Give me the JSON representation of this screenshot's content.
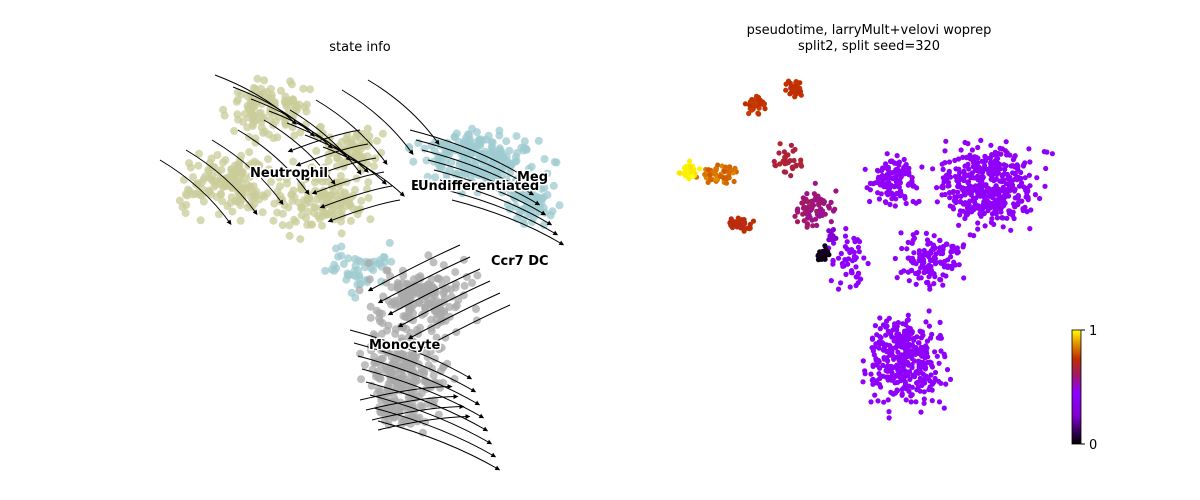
{
  "chart_data": [
    {
      "type": "scatter",
      "title": "state info",
      "legend_placement": "on data",
      "clusters": [
        {
          "name": "Neutrophil",
          "color": "#c9cc9a"
        },
        {
          "name": "E",
          "color": "#9ecbd0"
        },
        {
          "name": "Undifferentiated",
          "color": "#9ecbd0"
        },
        {
          "name": "Meg",
          "color": "#9ecbd0"
        },
        {
          "name": "Ccr7 DC",
          "color": "#9ecbd0"
        },
        {
          "name": "Monocyte",
          "color": "#a9a9a9"
        }
      ],
      "overlay": "velocity streamlines",
      "grid": false,
      "axes_visible": false
    },
    {
      "type": "scatter",
      "title": "pseudotime, larryMult+velovi woprep\nsplit2, split seed=320",
      "colormap": "gnuplot",
      "colorbar": {
        "min": 0,
        "max": 1,
        "ticks": [
          "0",
          "1"
        ]
      },
      "grid": false,
      "axes_visible": false
    }
  ]
}
